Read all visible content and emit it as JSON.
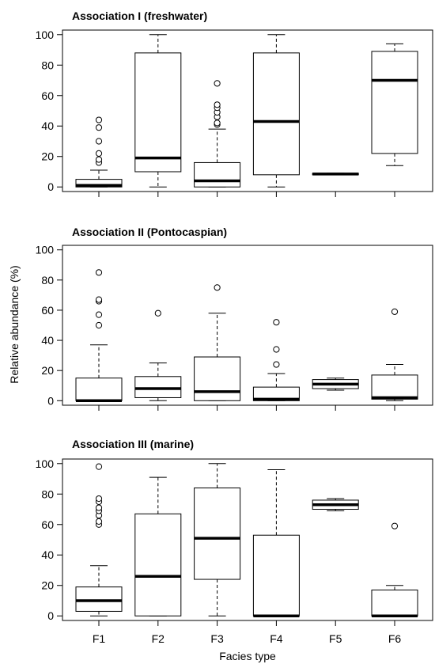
{
  "figure": {
    "ylabel": "Relative abundance (%)",
    "xlabel": "Facies type"
  },
  "chart_data": [
    {
      "type": "box",
      "title": "Association I (freshwater)",
      "categories": [
        "F1",
        "F2",
        "F3",
        "F4",
        "F5",
        "F6"
      ],
      "yticks": [
        0,
        20,
        40,
        60,
        80,
        100
      ],
      "ylim": [
        -3,
        103
      ],
      "grid": false,
      "boxes": [
        {
          "whisker_low": 0,
          "q1": 0,
          "median": 1,
          "q3": 5,
          "whisker_high": 11,
          "outliers": [
            16,
            18,
            22,
            30,
            39,
            44
          ]
        },
        {
          "whisker_low": 0,
          "q1": 10,
          "median": 19,
          "q3": 88,
          "whisker_high": 100,
          "outliers": []
        },
        {
          "whisker_low": 0,
          "q1": 0,
          "median": 4,
          "q3": 16,
          "whisker_high": 38,
          "outliers": [
            41,
            42,
            46,
            49,
            52,
            54,
            68
          ]
        },
        {
          "whisker_low": 0,
          "q1": 8,
          "median": 43,
          "q3": 88,
          "whisker_high": 100,
          "outliers": []
        },
        {
          "whisker_low": 8,
          "q1": 8,
          "median": 8.5,
          "q3": 9,
          "whisker_high": 9,
          "outliers": []
        },
        {
          "whisker_low": 14,
          "q1": 22,
          "median": 70,
          "q3": 89,
          "whisker_high": 94,
          "outliers": []
        }
      ]
    },
    {
      "type": "box",
      "title": "Association II (Pontocaspian)",
      "categories": [
        "F1",
        "F2",
        "F3",
        "F4",
        "F5",
        "F6"
      ],
      "yticks": [
        0,
        20,
        40,
        60,
        80,
        100
      ],
      "ylim": [
        -3,
        103
      ],
      "grid": false,
      "boxes": [
        {
          "whisker_low": 0,
          "q1": 0,
          "median": 0,
          "q3": 15,
          "whisker_high": 37,
          "outliers": [
            50,
            57,
            66,
            67,
            85
          ]
        },
        {
          "whisker_low": 0,
          "q1": 2,
          "median": 8,
          "q3": 16,
          "whisker_high": 25,
          "outliers": [
            58
          ]
        },
        {
          "whisker_low": 0,
          "q1": 0,
          "median": 6,
          "q3": 29,
          "whisker_high": 58,
          "outliers": [
            75
          ]
        },
        {
          "whisker_low": 0,
          "q1": 0,
          "median": 1,
          "q3": 9,
          "whisker_high": 18,
          "outliers": [
            24,
            34,
            52
          ]
        },
        {
          "whisker_low": 7,
          "q1": 8,
          "median": 11,
          "q3": 14,
          "whisker_high": 15,
          "outliers": []
        },
        {
          "whisker_low": 0,
          "q1": 1,
          "median": 2,
          "q3": 17,
          "whisker_high": 24,
          "outliers": [
            59
          ]
        }
      ]
    },
    {
      "type": "box",
      "title": "Association III (marine)",
      "categories": [
        "F1",
        "F2",
        "F3",
        "F4",
        "F5",
        "F6"
      ],
      "yticks": [
        0,
        20,
        40,
        60,
        80,
        100
      ],
      "ylim": [
        -3,
        103
      ],
      "grid": false,
      "boxes": [
        {
          "whisker_low": 0,
          "q1": 3,
          "median": 10,
          "q3": 19,
          "whisker_high": 33,
          "outliers": [
            60,
            62,
            66,
            69,
            71,
            75,
            77,
            98
          ]
        },
        {
          "whisker_low": 0,
          "q1": 0,
          "median": 26,
          "q3": 67,
          "whisker_high": 91,
          "outliers": []
        },
        {
          "whisker_low": 0,
          "q1": 24,
          "median": 51,
          "q3": 84,
          "whisker_high": 100,
          "outliers": []
        },
        {
          "whisker_low": 0,
          "q1": 0,
          "median": 0,
          "q3": 53,
          "whisker_high": 96,
          "outliers": []
        },
        {
          "whisker_low": 69,
          "q1": 70,
          "median": 73,
          "q3": 76,
          "whisker_high": 77,
          "outliers": []
        },
        {
          "whisker_low": 0,
          "q1": 0,
          "median": 0,
          "q3": 17,
          "whisker_high": 20,
          "outliers": [
            59
          ]
        }
      ]
    }
  ]
}
